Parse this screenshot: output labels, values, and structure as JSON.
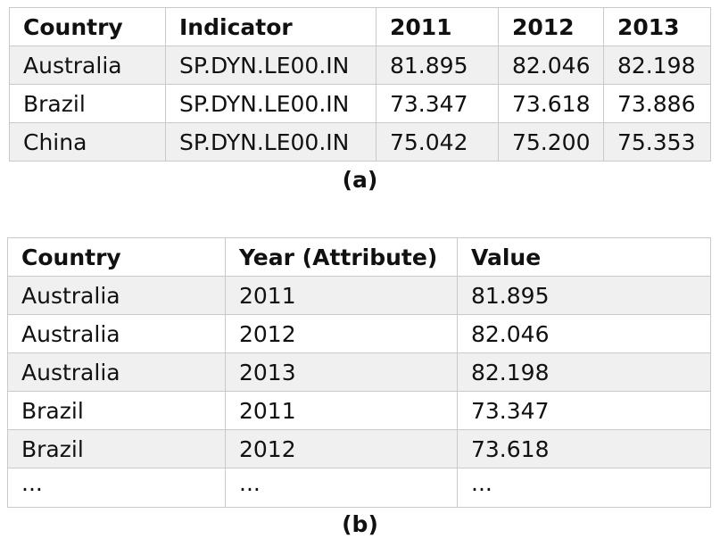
{
  "table_a": {
    "headers": [
      "Country",
      "Indicator",
      "2011",
      "2012",
      "2013"
    ],
    "rows": [
      [
        "Australia",
        "SP.DYN.LE00.IN",
        "81.895",
        "82.046",
        "82.198"
      ],
      [
        "Brazil",
        "SP.DYN.LE00.IN",
        "73.347",
        "73.618",
        "73.886"
      ],
      [
        "China",
        "SP.DYN.LE00.IN",
        "75.042",
        "75.200",
        "75.353"
      ]
    ],
    "caption": "(a)"
  },
  "table_b": {
    "headers": [
      "Country",
      "Year (Attribute)",
      "Value"
    ],
    "rows": [
      [
        "Australia",
        "2011",
        "81.895"
      ],
      [
        "Australia",
        "2012",
        "82.046"
      ],
      [
        "Australia",
        "2013",
        "82.198"
      ],
      [
        "Brazil",
        "2011",
        "73.347"
      ],
      [
        "Brazil",
        "2012",
        "73.618"
      ],
      [
        "...",
        "...",
        "..."
      ]
    ],
    "caption": "(b)"
  }
}
